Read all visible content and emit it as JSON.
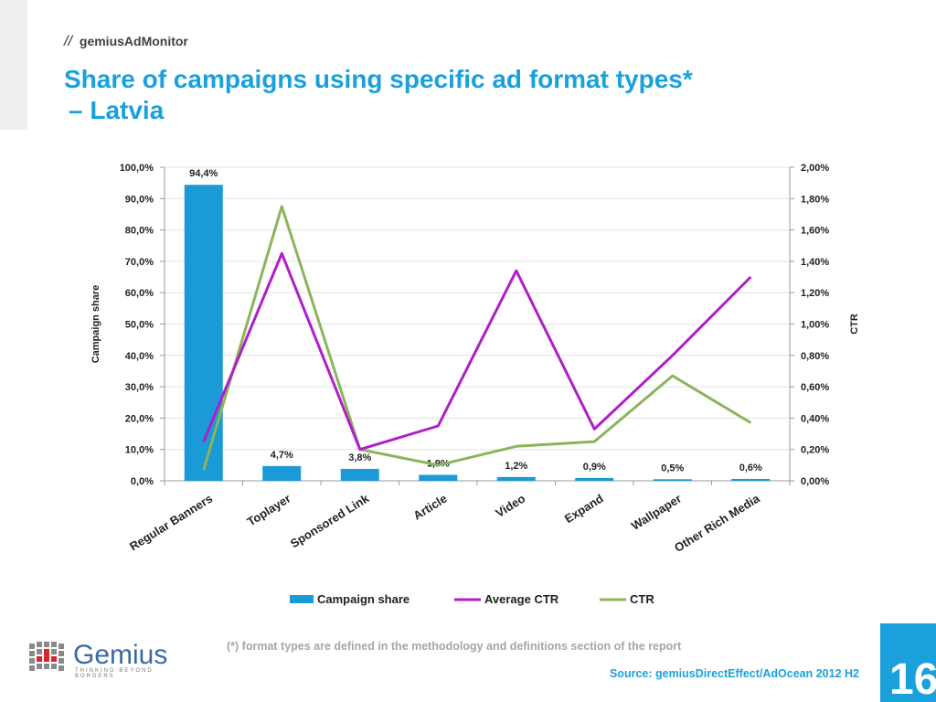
{
  "header": {
    "slashes": "//",
    "brand": "gemiusAdMonitor"
  },
  "title": {
    "line1": "Share of campaigns using specific ad format types*",
    "line2": "– Latvia"
  },
  "footnote": "(*)  format types are defined in the methodology and definitions section of the report",
  "source": "Source: gemiusDirectEffect/AdOcean 2012 H2",
  "page_number": "16",
  "logo": {
    "word": "Gemius",
    "tagline": "THINKING BEYOND BORDERS"
  },
  "colors": {
    "title": "#1aa1dc",
    "bar": "#1a9ad6",
    "average_ctr": "#b01ec8",
    "ctr": "#8cb45a"
  },
  "chart_data": {
    "type": "bar",
    "categories": [
      "Regular Banners",
      "Toplayer",
      "Sponsored Link",
      "Article",
      "Video",
      "Expand",
      "Wallpaper",
      "Other Rich Media"
    ],
    "ylabel": "Campaign share",
    "y2label": "CTR",
    "ylim": [
      0,
      100
    ],
    "y2lim": [
      0,
      2
    ],
    "y_ticks": [
      "0,0%",
      "10,0%",
      "20,0%",
      "30,0%",
      "40,0%",
      "50,0%",
      "60,0%",
      "70,0%",
      "80,0%",
      "90,0%",
      "100,0%"
    ],
    "y2_ticks": [
      "0,00%",
      "0,20%",
      "0,40%",
      "0,60%",
      "0,80%",
      "1,00%",
      "1,20%",
      "1,40%",
      "1,60%",
      "1,80%",
      "2,00%"
    ],
    "grid": true,
    "legend_position": "bottom",
    "series": [
      {
        "name": "Campaign share",
        "type": "bar",
        "axis": "left",
        "values": [
          94.4,
          4.7,
          3.8,
          1.9,
          1.2,
          0.9,
          0.5,
          0.6
        ],
        "labels": [
          "94,4%",
          "4,7%",
          "3,8%",
          "1,9%",
          "1,2%",
          "0,9%",
          "0,5%",
          "0,6%"
        ]
      },
      {
        "name": "Average CTR",
        "type": "line",
        "axis": "right",
        "values": [
          0.25,
          1.45,
          0.2,
          0.35,
          1.34,
          0.33,
          0.8,
          1.3
        ]
      },
      {
        "name": "CTR",
        "type": "line",
        "axis": "right",
        "values": [
          0.07,
          1.75,
          0.2,
          0.1,
          0.22,
          0.25,
          0.67,
          0.37
        ]
      }
    ]
  }
}
